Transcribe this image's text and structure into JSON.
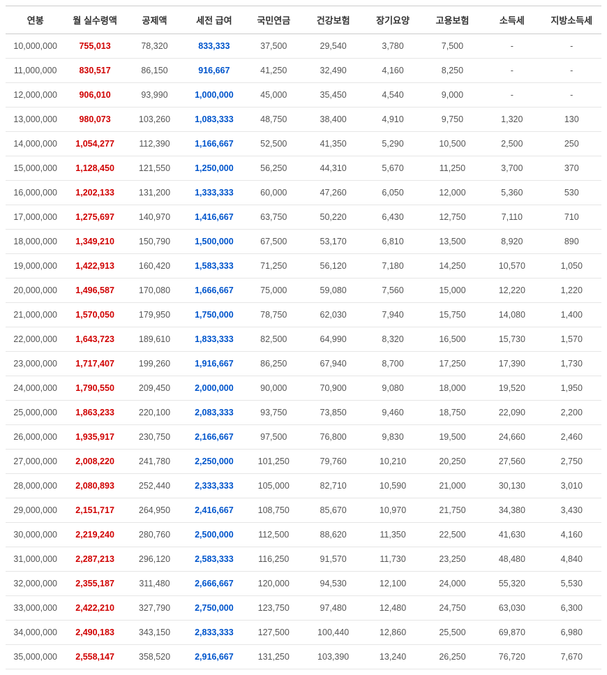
{
  "table": {
    "headers": [
      "연봉",
      "월 실수령액",
      "공제액",
      "세전 급여",
      "국민연금",
      "건강보험",
      "장기요양",
      "고용보험",
      "소득세",
      "지방소득세"
    ],
    "rows": [
      [
        "10,000,000",
        "755,013",
        "78,320",
        "833,333",
        "37,500",
        "29,540",
        "3,780",
        "7,500",
        "-",
        "-"
      ],
      [
        "11,000,000",
        "830,517",
        "86,150",
        "916,667",
        "41,250",
        "32,490",
        "4,160",
        "8,250",
        "-",
        "-"
      ],
      [
        "12,000,000",
        "906,010",
        "93,990",
        "1,000,000",
        "45,000",
        "35,450",
        "4,540",
        "9,000",
        "-",
        "-"
      ],
      [
        "13,000,000",
        "980,073",
        "103,260",
        "1,083,333",
        "48,750",
        "38,400",
        "4,910",
        "9,750",
        "1,320",
        "130"
      ],
      [
        "14,000,000",
        "1,054,277",
        "112,390",
        "1,166,667",
        "52,500",
        "41,350",
        "5,290",
        "10,500",
        "2,500",
        "250"
      ],
      [
        "15,000,000",
        "1,128,450",
        "121,550",
        "1,250,000",
        "56,250",
        "44,310",
        "5,670",
        "11,250",
        "3,700",
        "370"
      ],
      [
        "16,000,000",
        "1,202,133",
        "131,200",
        "1,333,333",
        "60,000",
        "47,260",
        "6,050",
        "12,000",
        "5,360",
        "530"
      ],
      [
        "17,000,000",
        "1,275,697",
        "140,970",
        "1,416,667",
        "63,750",
        "50,220",
        "6,430",
        "12,750",
        "7,110",
        "710"
      ],
      [
        "18,000,000",
        "1,349,210",
        "150,790",
        "1,500,000",
        "67,500",
        "53,170",
        "6,810",
        "13,500",
        "8,920",
        "890"
      ],
      [
        "19,000,000",
        "1,422,913",
        "160,420",
        "1,583,333",
        "71,250",
        "56,120",
        "7,180",
        "14,250",
        "10,570",
        "1,050"
      ],
      [
        "20,000,000",
        "1,496,587",
        "170,080",
        "1,666,667",
        "75,000",
        "59,080",
        "7,560",
        "15,000",
        "12,220",
        "1,220"
      ],
      [
        "21,000,000",
        "1,570,050",
        "179,950",
        "1,750,000",
        "78,750",
        "62,030",
        "7,940",
        "15,750",
        "14,080",
        "1,400"
      ],
      [
        "22,000,000",
        "1,643,723",
        "189,610",
        "1,833,333",
        "82,500",
        "64,990",
        "8,320",
        "16,500",
        "15,730",
        "1,570"
      ],
      [
        "23,000,000",
        "1,717,407",
        "199,260",
        "1,916,667",
        "86,250",
        "67,940",
        "8,700",
        "17,250",
        "17,390",
        "1,730"
      ],
      [
        "24,000,000",
        "1,790,550",
        "209,450",
        "2,000,000",
        "90,000",
        "70,900",
        "9,080",
        "18,000",
        "19,520",
        "1,950"
      ],
      [
        "25,000,000",
        "1,863,233",
        "220,100",
        "2,083,333",
        "93,750",
        "73,850",
        "9,460",
        "18,750",
        "22,090",
        "2,200"
      ],
      [
        "26,000,000",
        "1,935,917",
        "230,750",
        "2,166,667",
        "97,500",
        "76,800",
        "9,830",
        "19,500",
        "24,660",
        "2,460"
      ],
      [
        "27,000,000",
        "2,008,220",
        "241,780",
        "2,250,000",
        "101,250",
        "79,760",
        "10,210",
        "20,250",
        "27,560",
        "2,750"
      ],
      [
        "28,000,000",
        "2,080,893",
        "252,440",
        "2,333,333",
        "105,000",
        "82,710",
        "10,590",
        "21,000",
        "30,130",
        "3,010"
      ],
      [
        "29,000,000",
        "2,151,717",
        "264,950",
        "2,416,667",
        "108,750",
        "85,670",
        "10,970",
        "21,750",
        "34,380",
        "3,430"
      ],
      [
        "30,000,000",
        "2,219,240",
        "280,760",
        "2,500,000",
        "112,500",
        "88,620",
        "11,350",
        "22,500",
        "41,630",
        "4,160"
      ],
      [
        "31,000,000",
        "2,287,213",
        "296,120",
        "2,583,333",
        "116,250",
        "91,570",
        "11,730",
        "23,250",
        "48,480",
        "4,840"
      ],
      [
        "32,000,000",
        "2,355,187",
        "311,480",
        "2,666,667",
        "120,000",
        "94,530",
        "12,100",
        "24,000",
        "55,320",
        "5,530"
      ],
      [
        "33,000,000",
        "2,422,210",
        "327,790",
        "2,750,000",
        "123,750",
        "97,480",
        "12,480",
        "24,750",
        "63,030",
        "6,300"
      ],
      [
        "34,000,000",
        "2,490,183",
        "343,150",
        "2,833,333",
        "127,500",
        "100,440",
        "12,860",
        "25,500",
        "69,870",
        "6,980"
      ],
      [
        "35,000,000",
        "2,558,147",
        "358,520",
        "2,916,667",
        "131,250",
        "103,390",
        "13,240",
        "26,250",
        "76,720",
        "7,670"
      ]
    ],
    "highlight_columns": {
      "1": "red",
      "3": "blue"
    }
  }
}
